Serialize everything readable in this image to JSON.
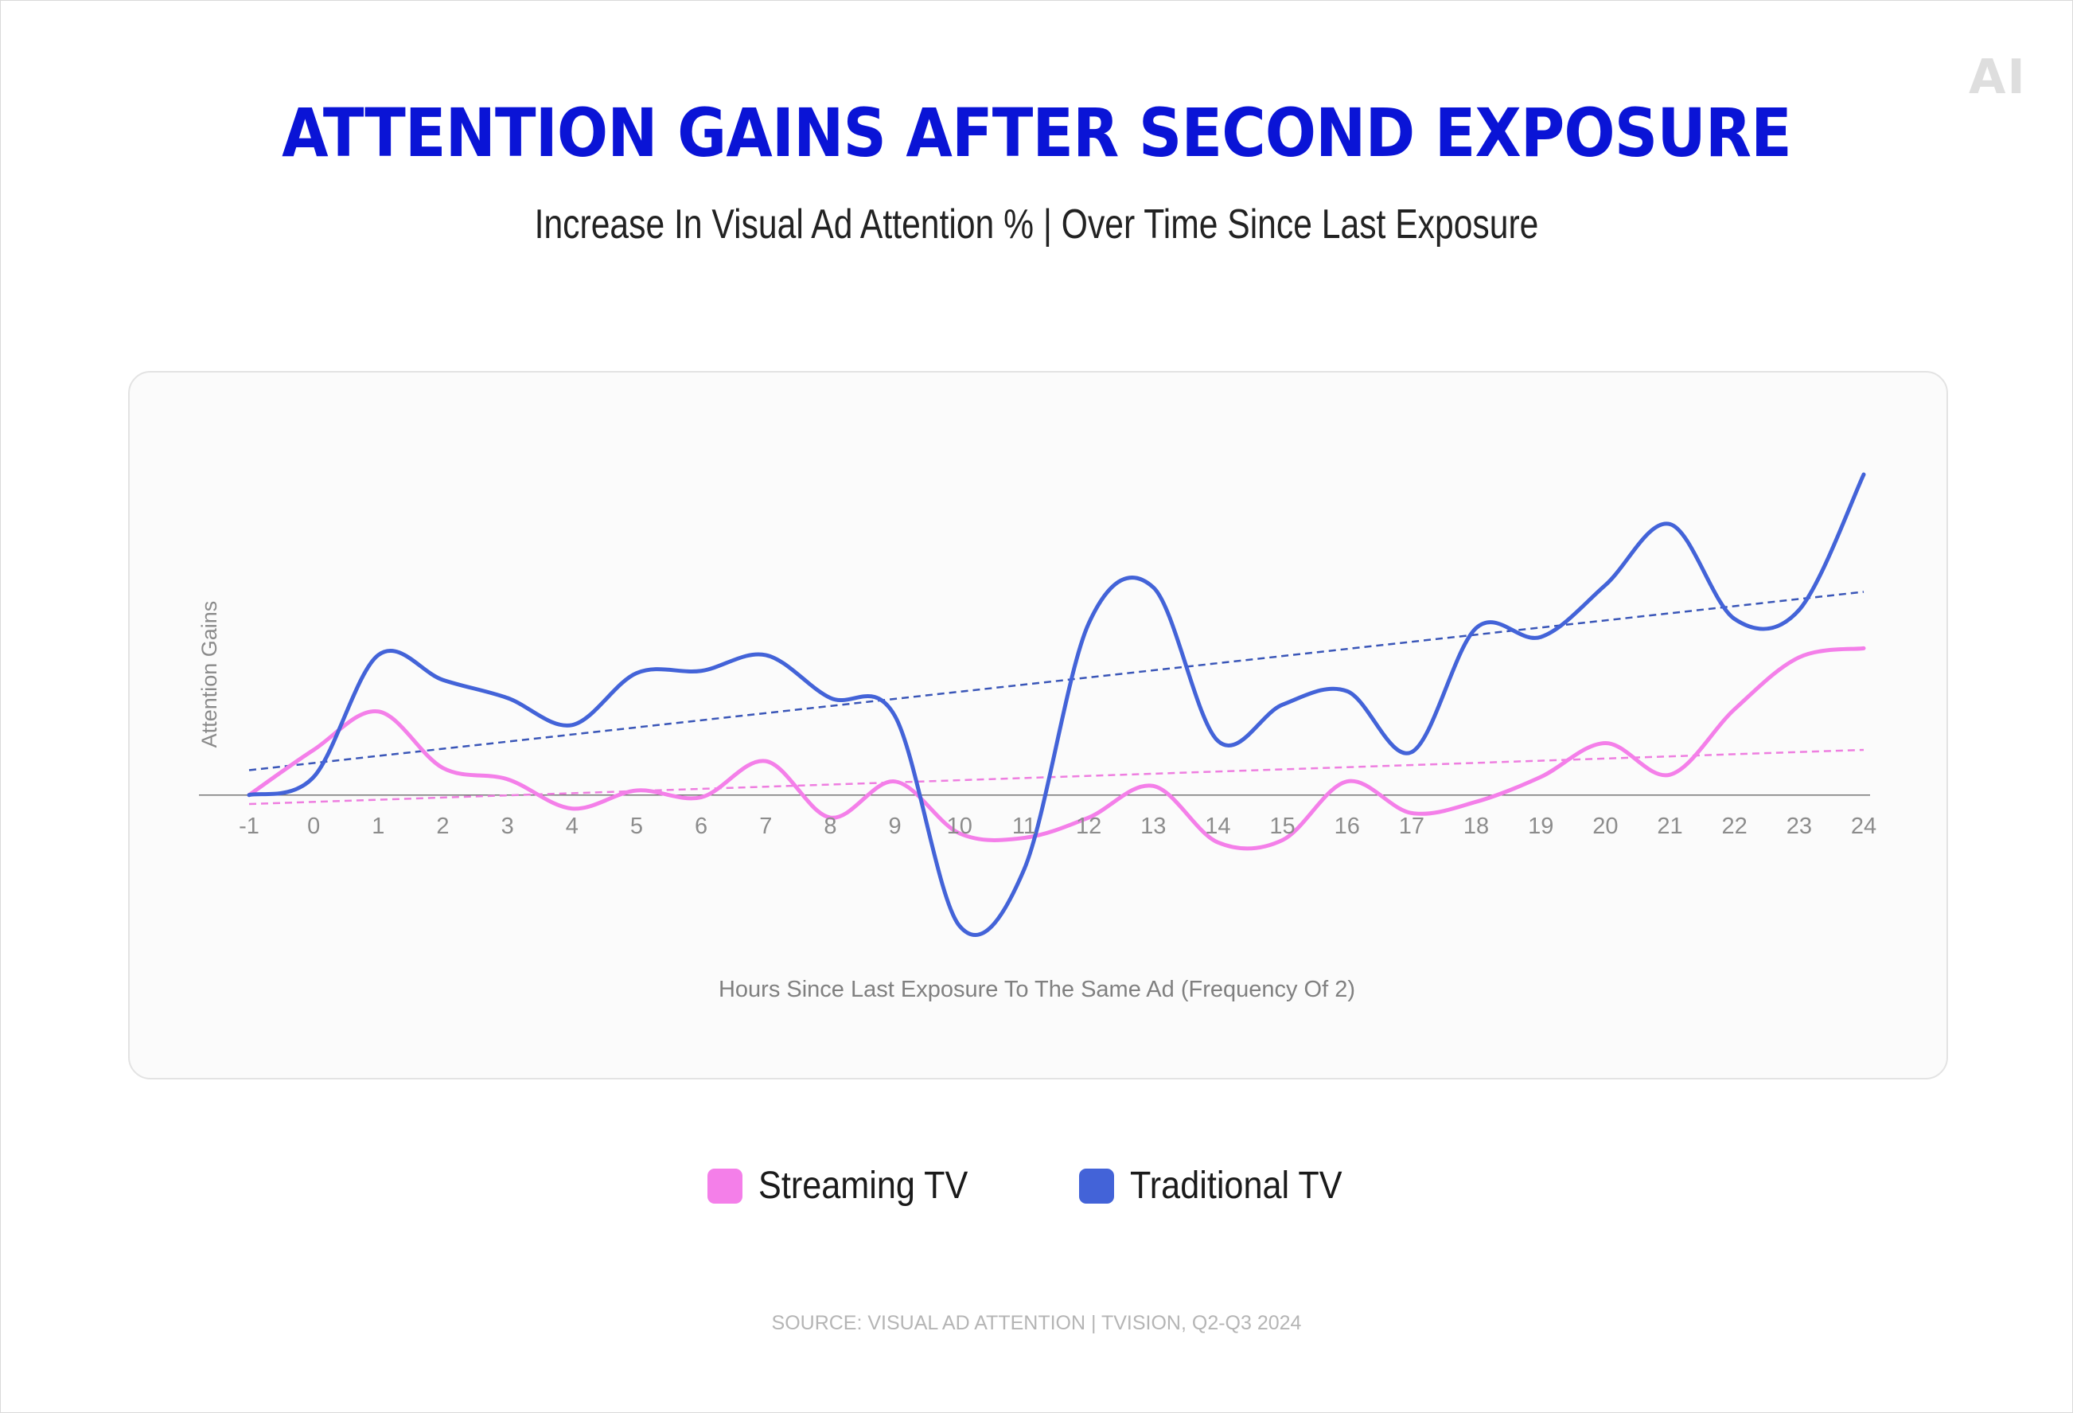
{
  "logo_text": "AI",
  "title": "ATTENTION GAINS AFTER SECOND EXPOSURE",
  "subtitle": "Increase In Visual Ad Attention %   | Over Time Since Last Exposure",
  "source": "SOURCE: VISUAL AD ATTENTION | TVISION, Q2-Q3 2024",
  "colors": {
    "title": "#0a14d6",
    "streaming": "#f47fe9",
    "traditional": "#4363d8",
    "trend_streaming": "#ee7ee0",
    "trend_traditional": "#3a56b8",
    "baseline": "#777777"
  },
  "chart_data": {
    "type": "line",
    "xlabel": "Hours Since Last Exposure To The Same Ad (Frequency Of 2)",
    "ylabel": "Attention Gains",
    "x": [
      -1,
      0,
      1,
      2,
      3,
      4,
      5,
      6,
      7,
      8,
      9,
      10,
      11,
      12,
      13,
      14,
      15,
      16,
      17,
      18,
      19,
      20,
      21,
      22,
      23,
      24
    ],
    "x_tick_labels": [
      "-1",
      "0",
      "1",
      "2",
      "3",
      "4",
      "5",
      "6",
      "7",
      "8",
      "9",
      "10",
      "11",
      "12",
      "13",
      "14",
      "15",
      "16",
      "17",
      "18",
      "19",
      "20",
      "21",
      "22",
      "23",
      "24"
    ],
    "ylim": [
      -6.5,
      16
    ],
    "y_ticks_shown": false,
    "grid": false,
    "legend_position": "bottom-center",
    "series": [
      {
        "name": "Streaming TV",
        "color": "#f47fe9",
        "values": [
          0,
          2.0,
          3.7,
          1.2,
          0.7,
          -0.6,
          0.2,
          -0.1,
          1.5,
          -1.0,
          0.6,
          -1.7,
          -1.9,
          -1.0,
          0.4,
          -2.1,
          -2.0,
          0.6,
          -0.8,
          -0.3,
          0.8,
          2.3,
          0.9,
          3.8,
          6.1,
          6.5
        ]
      },
      {
        "name": "Traditional TV",
        "color": "#4363d8",
        "values": [
          0,
          0.8,
          6.2,
          5.1,
          4.3,
          3.1,
          5.4,
          5.5,
          6.2,
          4.3,
          3.5,
          -5.8,
          -3.3,
          7.6,
          9.2,
          2.4,
          4.0,
          4.6,
          1.9,
          7.4,
          7.0,
          9.3,
          12.0,
          7.8,
          8.2,
          14.2
        ]
      }
    ],
    "trendlines": [
      {
        "series": "Streaming TV",
        "style": "dashed",
        "start": [
          -1,
          -0.4
        ],
        "end": [
          24,
          2.0
        ]
      },
      {
        "series": "Traditional TV",
        "style": "dashed",
        "start": [
          -1,
          1.1
        ],
        "end": [
          24,
          9.0
        ]
      }
    ]
  },
  "legend": [
    {
      "label": "Streaming TV",
      "color": "#f47fe9"
    },
    {
      "label": "Traditional TV",
      "color": "#4363d8"
    }
  ]
}
